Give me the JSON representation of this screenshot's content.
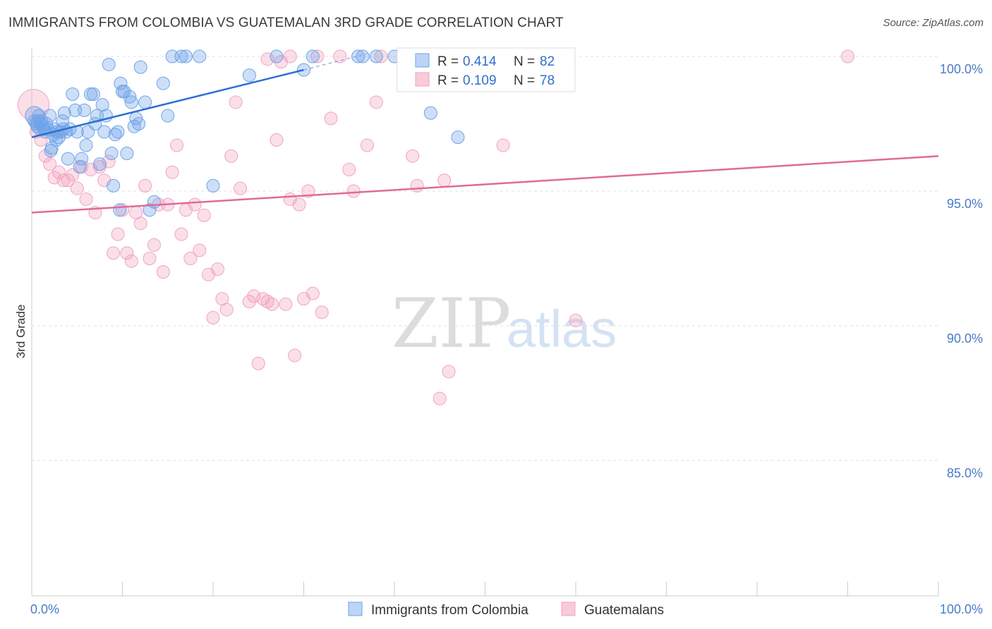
{
  "title": "IMMIGRANTS FROM COLOMBIA VS GUATEMALAN 3RD GRADE CORRELATION CHART",
  "source": "Source: ZipAtlas.com",
  "watermark": {
    "zip": "ZIP",
    "atlas": "atlas"
  },
  "legend": {
    "r_label": "R = ",
    "n_label": "N = ",
    "series": [
      {
        "r": "0.414",
        "n": "82"
      },
      {
        "r": "0.109",
        "n": "78"
      }
    ]
  },
  "chart_data": {
    "type": "scatter",
    "ylabel": "3rd Grade",
    "xlim": [
      0,
      100
    ],
    "ylim": [
      80.5,
      100.5
    ],
    "y_ticks": [
      100,
      95,
      90,
      85
    ],
    "y_tick_labels": [
      "100.0%",
      "95.0%",
      "90.0%",
      "85.0%"
    ],
    "x_tick_labels": [
      "0.0%",
      "100.0%"
    ],
    "grid": true,
    "colors": {
      "colombia": "#6fa3e8",
      "colombia_line": "#2f6fcf",
      "guatemalan": "#f2a3bf",
      "guatemalan_line": "#e06b96"
    },
    "series": [
      {
        "name": "Immigrants from Colombia",
        "trend": {
          "x": [
            0,
            30
          ],
          "y": [
            97.0,
            99.5
          ],
          "dash_to": [
            37,
            100.1
          ]
        },
        "points": [
          [
            0.3,
            97.8
          ],
          [
            0.3,
            97.6
          ],
          [
            0.5,
            97.5
          ],
          [
            0.6,
            97.4
          ],
          [
            0.7,
            97.6
          ],
          [
            0.8,
            97.8
          ],
          [
            0.9,
            97.3
          ],
          [
            1.0,
            97.5
          ],
          [
            1.1,
            97.6
          ],
          [
            1.2,
            97.4
          ],
          [
            1.4,
            97.3
          ],
          [
            1.5,
            97.2
          ],
          [
            1.6,
            97.5
          ],
          [
            1.8,
            97.3
          ],
          [
            2.0,
            97.8
          ],
          [
            2.1,
            96.5
          ],
          [
            2.2,
            96.6
          ],
          [
            2.4,
            97.1
          ],
          [
            2.5,
            97.3
          ],
          [
            2.7,
            96.9
          ],
          [
            2.8,
            97.2
          ],
          [
            3.0,
            97.0
          ],
          [
            3.2,
            97.2
          ],
          [
            3.4,
            97.6
          ],
          [
            3.5,
            97.3
          ],
          [
            3.6,
            97.9
          ],
          [
            3.8,
            97.2
          ],
          [
            4.0,
            96.2
          ],
          [
            4.2,
            97.3
          ],
          [
            4.5,
            98.6
          ],
          [
            4.8,
            98.0
          ],
          [
            5.0,
            97.2
          ],
          [
            5.3,
            95.9
          ],
          [
            5.5,
            96.2
          ],
          [
            5.8,
            98.0
          ],
          [
            6.0,
            96.7
          ],
          [
            6.2,
            97.2
          ],
          [
            6.5,
            98.6
          ],
          [
            6.8,
            98.6
          ],
          [
            7.0,
            97.5
          ],
          [
            7.2,
            97.8
          ],
          [
            7.5,
            96.0
          ],
          [
            7.8,
            98.2
          ],
          [
            8.0,
            97.2
          ],
          [
            8.2,
            97.8
          ],
          [
            8.5,
            99.7
          ],
          [
            8.8,
            96.4
          ],
          [
            9.0,
            95.2
          ],
          [
            9.2,
            97.1
          ],
          [
            9.5,
            97.2
          ],
          [
            9.7,
            94.3
          ],
          [
            9.8,
            99.0
          ],
          [
            10.0,
            98.7
          ],
          [
            10.2,
            98.7
          ],
          [
            10.5,
            96.4
          ],
          [
            10.8,
            98.5
          ],
          [
            11.0,
            98.3
          ],
          [
            11.3,
            97.4
          ],
          [
            11.5,
            97.7
          ],
          [
            11.8,
            97.5
          ],
          [
            12.0,
            99.6
          ],
          [
            12.5,
            98.3
          ],
          [
            13.0,
            94.3
          ],
          [
            13.5,
            94.6
          ],
          [
            14.5,
            99.0
          ],
          [
            15.0,
            97.8
          ],
          [
            15.5,
            100.0
          ],
          [
            16.5,
            100.0
          ],
          [
            17.0,
            100.0
          ],
          [
            18.5,
            100.0
          ],
          [
            20.0,
            95.2
          ],
          [
            24.0,
            99.3
          ],
          [
            27.0,
            100.0
          ],
          [
            30.0,
            99.5
          ],
          [
            31.0,
            100.0
          ],
          [
            36.0,
            100.0
          ],
          [
            36.5,
            100.0
          ],
          [
            38.0,
            100.0
          ],
          [
            40.0,
            100.0
          ],
          [
            44.0,
            97.9
          ],
          [
            47.0,
            97.0
          ],
          [
            53.0,
            100.0
          ]
        ]
      },
      {
        "name": "Guatemalans",
        "trend": {
          "x": [
            0,
            100
          ],
          "y": [
            94.2,
            96.3
          ]
        },
        "points": [
          [
            0.2,
            98.2
          ],
          [
            0.5,
            97.2
          ],
          [
            1.0,
            96.9
          ],
          [
            1.5,
            96.3
          ],
          [
            2.0,
            96.0
          ],
          [
            2.5,
            95.5
          ],
          [
            3.0,
            95.7
          ],
          [
            3.5,
            95.4
          ],
          [
            4.0,
            95.4
          ],
          [
            4.5,
            95.6
          ],
          [
            5.0,
            95.1
          ],
          [
            5.5,
            95.9
          ],
          [
            6.0,
            94.7
          ],
          [
            6.5,
            95.8
          ],
          [
            7.0,
            94.2
          ],
          [
            7.5,
            95.9
          ],
          [
            8.0,
            95.4
          ],
          [
            8.5,
            96.1
          ],
          [
            9.0,
            92.7
          ],
          [
            9.5,
            93.4
          ],
          [
            10.0,
            94.3
          ],
          [
            10.5,
            92.7
          ],
          [
            11.0,
            92.4
          ],
          [
            11.5,
            94.2
          ],
          [
            12.0,
            93.8
          ],
          [
            12.5,
            95.2
          ],
          [
            13.0,
            92.5
          ],
          [
            13.5,
            93.0
          ],
          [
            14.0,
            94.5
          ],
          [
            14.5,
            92.0
          ],
          [
            15.0,
            94.5
          ],
          [
            15.5,
            95.7
          ],
          [
            16.0,
            96.7
          ],
          [
            16.5,
            93.4
          ],
          [
            17.0,
            94.3
          ],
          [
            17.5,
            92.5
          ],
          [
            18.0,
            94.5
          ],
          [
            18.5,
            92.8
          ],
          [
            19.0,
            94.1
          ],
          [
            19.5,
            91.9
          ],
          [
            20.0,
            90.3
          ],
          [
            20.5,
            92.1
          ],
          [
            21.0,
            91.0
          ],
          [
            21.5,
            90.6
          ],
          [
            22.0,
            96.3
          ],
          [
            22.5,
            98.3
          ],
          [
            23.0,
            95.1
          ],
          [
            24.0,
            90.9
          ],
          [
            24.5,
            91.1
          ],
          [
            25.0,
            88.6
          ],
          [
            25.5,
            91.0
          ],
          [
            26.0,
            90.9
          ],
          [
            26.5,
            90.8
          ],
          [
            27.0,
            96.9
          ],
          [
            27.5,
            99.8
          ],
          [
            28.0,
            90.8
          ],
          [
            28.5,
            94.7
          ],
          [
            29.0,
            88.9
          ],
          [
            29.5,
            94.5
          ],
          [
            30.0,
            91.0
          ],
          [
            30.5,
            95.0
          ],
          [
            31.0,
            91.2
          ],
          [
            32.0,
            90.5
          ],
          [
            33.0,
            97.7
          ],
          [
            34.0,
            100.0
          ],
          [
            35.0,
            95.8
          ],
          [
            35.5,
            95.0
          ],
          [
            37.0,
            96.7
          ],
          [
            38.0,
            98.3
          ],
          [
            38.5,
            100.0
          ],
          [
            42.0,
            96.3
          ],
          [
            42.5,
            95.2
          ],
          [
            43.0,
            100.0
          ],
          [
            45.0,
            87.3
          ],
          [
            45.5,
            95.4
          ],
          [
            46.0,
            88.3
          ],
          [
            52.0,
            96.7
          ],
          [
            60.0,
            90.2
          ]
        ]
      }
    ],
    "extra_points": {
      "guatemalan": [
        [
          56.0,
          100.0
        ],
        [
          57.0,
          100.0
        ],
        [
          90.0,
          100.0
        ],
        [
          44.0,
          100.0
        ],
        [
          42.5,
          100.0
        ],
        [
          31.5,
          100.0
        ],
        [
          28.5,
          100.0
        ],
        [
          26.0,
          99.9
        ]
      ]
    }
  },
  "bottom_legend": [
    "Immigrants from Colombia",
    "Guatemalans"
  ]
}
